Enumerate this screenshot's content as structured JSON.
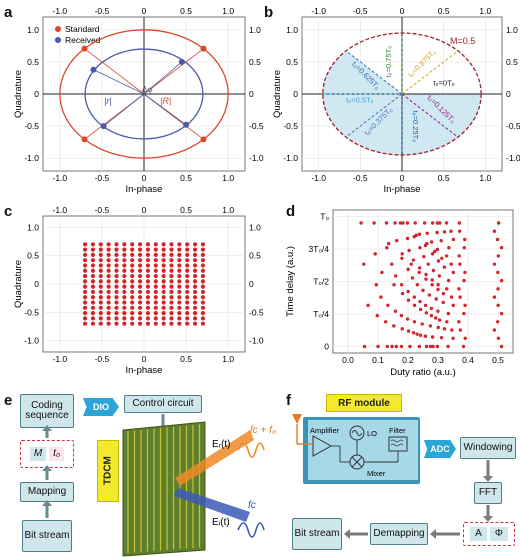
{
  "panels": {
    "a": "a",
    "b": "b",
    "c": "c",
    "d": "d",
    "e": "e",
    "f": "f"
  },
  "axes": {
    "inphase": "In-phase",
    "quadrature": "Quadrature",
    "iq_ticks": [
      "-1.0",
      "-0.5",
      "0",
      "0.5",
      "1.0"
    ],
    "time_delay": "Time delay (a.u.)",
    "duty_ratio": "Duty ratio (a.u.)",
    "d_yticks": [
      "0",
      "T₀/4",
      "T₀/2",
      "3T₀/4",
      "T₀"
    ],
    "d_xticks": [
      "0.0",
      "0.1",
      "0.2",
      "0.3",
      "0.4",
      "0.5"
    ]
  },
  "panel_a": {
    "legend_standard": "Standard",
    "legend_received": "Received",
    "label_r": "|r|",
    "label_R": "|R|",
    "label_dphi": "Δφ"
  },
  "panel_b": {
    "M": "M=0.5",
    "sectors": [
      {
        "label": "t₀=0T₀",
        "angle": 0,
        "color": "#1a1a1a"
      },
      {
        "label": "t₀=0.125T₀",
        "angle": -45,
        "color": "#9a1e84"
      },
      {
        "label": "t₀=0.25T₀",
        "angle": -90,
        "color": "#1d63a8"
      },
      {
        "label": "t₀=0.375T₀",
        "angle": -135,
        "color": "#4a72c2"
      },
      {
        "label": "t₀=0.5T₀",
        "angle": 180,
        "color": "#3aa8d8"
      },
      {
        "label": "t₀=0.625T₀",
        "angle": 135,
        "color": "#3a6ab0"
      },
      {
        "label": "t₀=0.75T₀",
        "angle": 90,
        "color": "#2e8b3a"
      },
      {
        "label": "t₀=0.875T₀",
        "angle": 45,
        "color": "#d4a520"
      }
    ]
  },
  "chart_data": [
    {
      "type": "scatter",
      "title": "a",
      "xlabel": "In-phase",
      "ylabel": "Quadrature",
      "xlim": [
        -1.2,
        1.2
      ],
      "ylim": [
        -1.2,
        1.2
      ],
      "series": [
        {
          "name": "Standard",
          "radius": 1.0,
          "points": [
            [
              0.707,
              0.707
            ],
            [
              -0.707,
              0.707
            ],
            [
              -0.707,
              -0.707
            ],
            [
              0.707,
              -0.707
            ]
          ]
        },
        {
          "name": "Received",
          "radius": 0.7,
          "points": [
            [
              0.45,
              0.5
            ],
            [
              -0.6,
              0.38
            ],
            [
              -0.48,
              -0.5
            ],
            [
              0.5,
              -0.48
            ]
          ]
        }
      ]
    },
    {
      "type": "scatter",
      "title": "c",
      "xlabel": "In-phase",
      "ylabel": "Quadrature",
      "xlim": [
        -1.2,
        1.2
      ],
      "ylim": [
        -1.2,
        1.2
      ],
      "grid": "16x16 square lattice",
      "range": [
        -0.7,
        0.7
      ]
    },
    {
      "type": "scatter",
      "title": "d",
      "xlabel": "Duty ratio (a.u.)",
      "ylabel": "Time delay (a.u.)",
      "xlim": [
        -0.05,
        0.55
      ],
      "ylim": [
        0,
        1
      ]
    }
  ],
  "panel_e": {
    "coding": "Coding sequence",
    "dio": "DIO",
    "control": "Control circuit",
    "M": "M",
    "t0": "t₀",
    "mapping": "Mapping",
    "bit": "Bit stream",
    "tdcm": "TDCM",
    "er": "Eᵣ(t)",
    "ei": "Eᵢ(t)",
    "fcf0": "fᴄ + f₀",
    "fc": "fᴄ"
  },
  "panel_f": {
    "rf": "RF module",
    "amplifier": "Amplifier",
    "lo": "LO",
    "filter": "Filter",
    "mixer": "Mixer",
    "adc": "ADC",
    "windowing": "Windowing",
    "fft": "FFT",
    "demapping": "Demapping",
    "bit": "Bit stream",
    "A": "A",
    "phi": "Φ"
  }
}
